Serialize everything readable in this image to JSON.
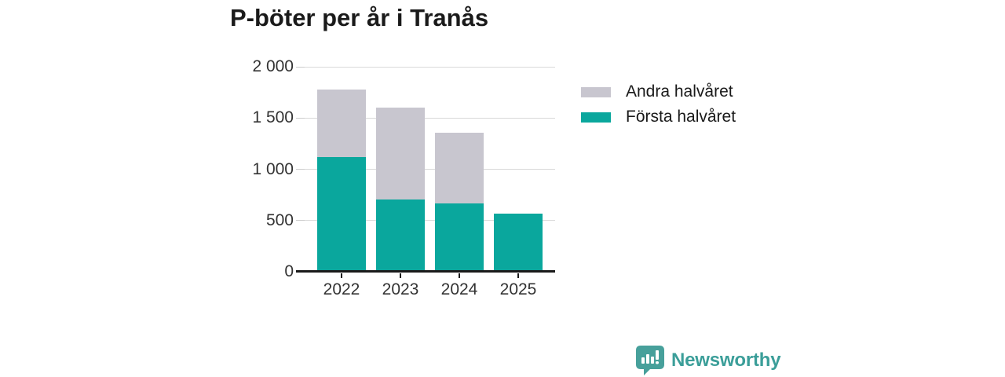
{
  "title": "P-böter per år i Tranås",
  "colors": {
    "first_half_teal": "#0aa79d",
    "second_half_gray": "#c8c6cf",
    "brand_teal": "#3b9e99",
    "logo_teal": "#47a09b",
    "axis": "#1a1a1a",
    "grid": "#d9d9d9",
    "axis_text": "#333333"
  },
  "legend": {
    "position": "right",
    "items": [
      {
        "key": "andra-halvaret",
        "label": "Andra halvåret",
        "color": "#c8c6cf"
      },
      {
        "key": "forsta-halvaret",
        "label": "Första halvåret",
        "color": "#0aa79d"
      }
    ]
  },
  "chart_data": {
    "type": "bar",
    "stacked": true,
    "title": "P-böter per år i Tranås",
    "categories": [
      "2022",
      "2023",
      "2024",
      "2025"
    ],
    "series": [
      {
        "key": "forsta-halvaret",
        "name": "Första halvåret",
        "color": "#0aa79d",
        "values": [
          1120,
          705,
          670,
          570
        ]
      },
      {
        "key": "andra-halvaret",
        "name": "Andra halvåret",
        "color": "#c8c6cf",
        "values": [
          660,
          895,
          690,
          0
        ]
      }
    ],
    "totals": [
      1780,
      1600,
      1360,
      570
    ],
    "xlabel": "",
    "ylabel": "",
    "ylim": [
      0,
      2000
    ],
    "yticks": [
      {
        "value": 0,
        "label": "0"
      },
      {
        "value": 500,
        "label": "500"
      },
      {
        "value": 1000,
        "label": "1 000"
      },
      {
        "value": 1500,
        "label": "1 500"
      },
      {
        "value": 2000,
        "label": "2 000"
      }
    ],
    "grid": "horizontal",
    "legend_position": "right"
  },
  "footer": {
    "brand": "Newsworthy",
    "logo_icon": "speech-bubble-bar-chart-icon"
  }
}
